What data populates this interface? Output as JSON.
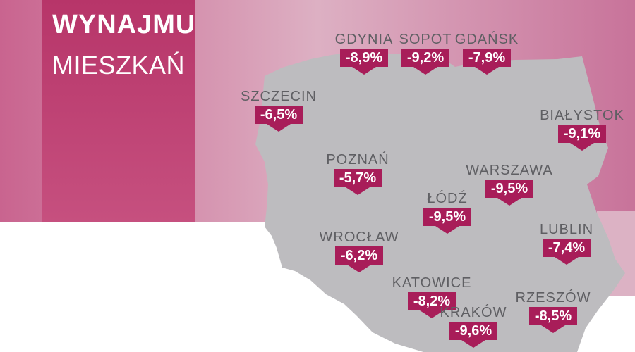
{
  "colors": {
    "accent": "#a81d59",
    "panel": "#c13f76",
    "map_fill": "#bdbcbf",
    "label_text": "#5f5f63"
  },
  "title": {
    "line1": "WYNAJMU",
    "line2": "MIESZKAŃ"
  },
  "cities": [
    {
      "id": "gdynia",
      "name": "GDYNIA",
      "change": "-8,9%"
    },
    {
      "id": "sopot",
      "name": "SOPOT",
      "change": "-9,2%"
    },
    {
      "id": "gdansk",
      "name": "GDAŃSK",
      "change": "-7,9%"
    },
    {
      "id": "szczecin",
      "name": "SZCZECIN",
      "change": "-6,5%"
    },
    {
      "id": "bialystok",
      "name": "BIAŁYSTOK",
      "change": "-9,1%"
    },
    {
      "id": "poznan",
      "name": "POZNAŃ",
      "change": "-5,7%"
    },
    {
      "id": "warszawa",
      "name": "WARSZAWA",
      "change": "-9,5%"
    },
    {
      "id": "lodz",
      "name": "ŁÓDŹ",
      "change": "-9,5%"
    },
    {
      "id": "wroclaw",
      "name": "WROCŁAW",
      "change": "-6,2%"
    },
    {
      "id": "lublin",
      "name": "LUBLIN",
      "change": "-7,4%"
    },
    {
      "id": "katowice",
      "name": "KATOWICE",
      "change": "-8,2%"
    },
    {
      "id": "rzeszow",
      "name": "RZESZÓW",
      "change": "-8,5%"
    },
    {
      "id": "krakow",
      "name": "KRAKÓW",
      "change": "-9,6%"
    }
  ]
}
